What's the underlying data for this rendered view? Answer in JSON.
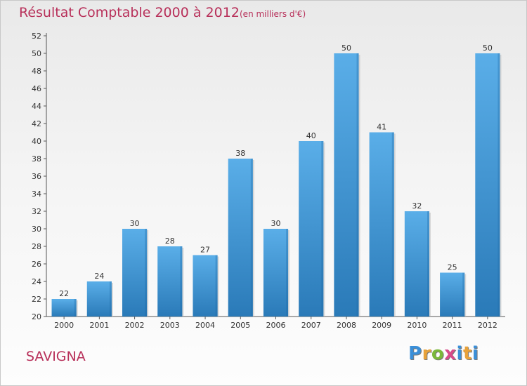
{
  "header": {
    "title": "Résultat Comptable 2000 à 2012",
    "subtitle": "(en milliers d'€)"
  },
  "footer": {
    "place": "SAVIGNA",
    "logo_text": "Proxiti"
  },
  "colors": {
    "bar_light": "#5aaee8",
    "bar_dark": "#2a7ab8",
    "title": "#b8305a"
  },
  "chart_data": {
    "type": "bar",
    "title": "Résultat Comptable 2000 à 2012",
    "subtitle": "(en milliers d'€)",
    "xlabel": "",
    "ylabel": "",
    "ylim": [
      20,
      52
    ],
    "ytick_step": 2,
    "grid": false,
    "categories": [
      "2000",
      "2001",
      "2002",
      "2003",
      "2004",
      "2005",
      "2006",
      "2007",
      "2008",
      "2009",
      "2010",
      "2011",
      "2012"
    ],
    "values": [
      22,
      24,
      30,
      28,
      27,
      38,
      30,
      40,
      50,
      41,
      32,
      25,
      50
    ]
  }
}
